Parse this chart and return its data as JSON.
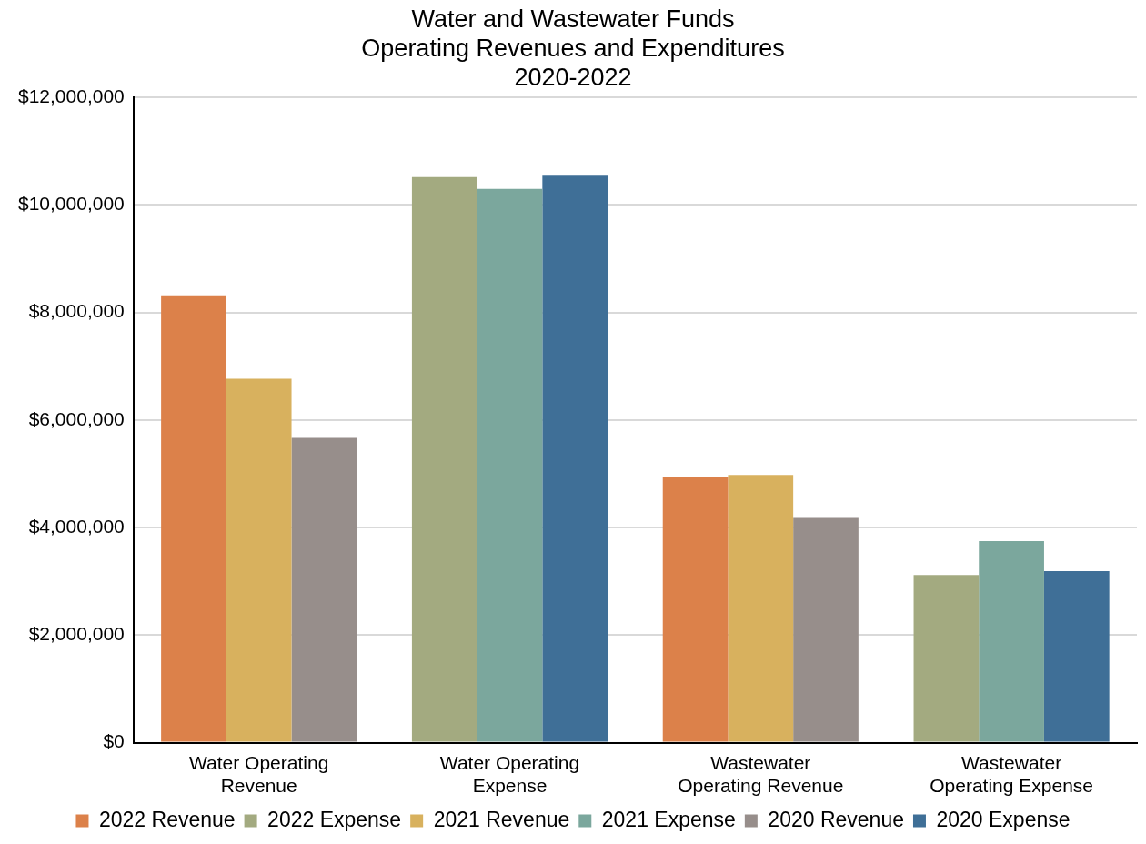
{
  "chart_data": {
    "type": "bar",
    "title": "Water and Wastewater Funds\nOperating Revenues and Expenditures\n2020-2022",
    "categories": [
      "Water Operating Revenue",
      "Water Operating Expense",
      "Wastewater Operating Revenue",
      "Wastewater Operating Expense"
    ],
    "series": [
      {
        "name": "2022 Revenue",
        "color": "#dc814a",
        "values": [
          8320000,
          null,
          4940000,
          null
        ]
      },
      {
        "name": "2022 Expense",
        "color": "#a3aa80",
        "values": [
          null,
          10520000,
          null,
          3120000
        ]
      },
      {
        "name": "2021 Revenue",
        "color": "#d8b15e",
        "values": [
          6770000,
          null,
          4980000,
          null
        ]
      },
      {
        "name": "2021 Expense",
        "color": "#7ba79d",
        "values": [
          null,
          10300000,
          null,
          3750000
        ]
      },
      {
        "name": "2020 Revenue",
        "color": "#978e8b",
        "values": [
          5670000,
          null,
          4180000,
          null
        ]
      },
      {
        "name": "2020 Expense",
        "color": "#3f6f97",
        "values": [
          null,
          10560000,
          null,
          3190000
        ]
      }
    ],
    "ylim": [
      0,
      12000000
    ],
    "yticks": [
      {
        "value": 0,
        "label": "$0"
      },
      {
        "value": 2000000,
        "label": "$2,000,000"
      },
      {
        "value": 4000000,
        "label": "$4,000,000"
      },
      {
        "value": 6000000,
        "label": "$6,000,000"
      },
      {
        "value": 8000000,
        "label": "$8,000,000"
      },
      {
        "value": 10000000,
        "label": "$10,000,000"
      },
      {
        "value": 12000000,
        "label": "$12,000,000"
      }
    ],
    "grid": "y",
    "legend": "bottom"
  }
}
